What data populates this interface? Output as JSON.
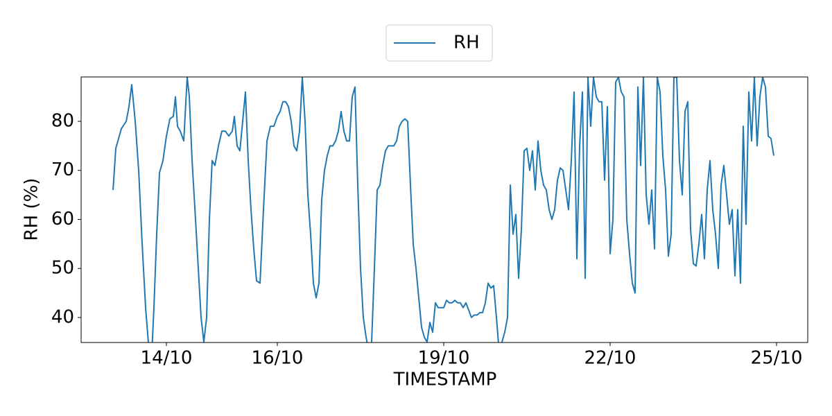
{
  "chart_data": {
    "type": "line",
    "xlabel": "TIMESTAMP",
    "ylabel": "RH (%)",
    "legend": "upper center",
    "grid": false,
    "xlim": [
      12.4625,
      25.5625
    ],
    "ylim": [
      34.9,
      89.05
    ],
    "xticks": [
      {
        "value": 14,
        "label": "14/10"
      },
      {
        "value": 16,
        "label": "16/10"
      },
      {
        "value": 19,
        "label": "19/10"
      },
      {
        "value": 22,
        "label": "22/10"
      },
      {
        "value": 25,
        "label": "25/10"
      }
    ],
    "yticks": [
      40,
      50,
      60,
      70,
      80
    ],
    "x": [
      13.038,
      13.088,
      13.188,
      13.275,
      13.325,
      13.375,
      13.438,
      13.5,
      13.563,
      13.625,
      13.688,
      13.738,
      13.775,
      13.825,
      13.875,
      13.938,
      14,
      14.063,
      14.125,
      14.163,
      14.2,
      14.25,
      14.313,
      14.375,
      14.413,
      14.463,
      14.525,
      14.575,
      14.625,
      14.675,
      14.725,
      14.775,
      14.825,
      14.875,
      14.938,
      15,
      15.063,
      15.125,
      15.188,
      15.225,
      15.275,
      15.325,
      15.375,
      15.425,
      15.475,
      15.525,
      15.575,
      15.625,
      15.688,
      15.75,
      15.813,
      15.875,
      15.938,
      16,
      16.05,
      16.1,
      16.15,
      16.2,
      16.25,
      16.3,
      16.35,
      16.4,
      16.45,
      16.5,
      16.55,
      16.6,
      16.65,
      16.7,
      16.75,
      16.8,
      16.85,
      16.9,
      16.95,
      17,
      17.05,
      17.1,
      17.15,
      17.2,
      17.25,
      17.3,
      17.35,
      17.4,
      17.45,
      17.5,
      17.55,
      17.6,
      17.65,
      17.7,
      17.75,
      17.8,
      17.85,
      17.9,
      17.95,
      18,
      18.05,
      18.1,
      18.15,
      18.2,
      18.25,
      18.3,
      18.35,
      18.4,
      18.45,
      18.5,
      18.55,
      18.6,
      18.65,
      18.7,
      18.75,
      18.8,
      18.85,
      18.9,
      18.95,
      19,
      19.05,
      19.1,
      19.15,
      19.2,
      19.25,
      19.3,
      19.35,
      19.4,
      19.45,
      19.5,
      19.55,
      19.6,
      19.65,
      19.7,
      19.75,
      19.8,
      19.85,
      19.9,
      19.95,
      20,
      20.05,
      20.1,
      20.15,
      20.2,
      20.25,
      20.3,
      20.35,
      20.4,
      20.45,
      20.5,
      20.55,
      20.6,
      20.65,
      20.7,
      20.75,
      20.8,
      20.85,
      20.9,
      20.95,
      21,
      21.05,
      21.1,
      21.15,
      21.2,
      21.25,
      21.3,
      21.35,
      21.4,
      21.45,
      21.5,
      21.55,
      21.6,
      21.65,
      21.7,
      21.75,
      21.8,
      21.85,
      21.9,
      21.95,
      22,
      22.05,
      22.1,
      22.15,
      22.2,
      22.25,
      22.3,
      22.35,
      22.4,
      22.45,
      22.5,
      22.55,
      22.6,
      22.65,
      22.7,
      22.75,
      22.8,
      22.85,
      22.9,
      22.95,
      23,
      23.05,
      23.1,
      23.15,
      23.2,
      23.25,
      23.3,
      23.35,
      23.4,
      23.45,
      23.5,
      23.55,
      23.6,
      23.65,
      23.7,
      23.75,
      23.8,
      23.85,
      23.9,
      23.95,
      24,
      24.05,
      24.1,
      24.15,
      24.2,
      24.25,
      24.3,
      24.35,
      24.4,
      24.45,
      24.5,
      24.55,
      24.6,
      24.65,
      24.7,
      24.75,
      24.8,
      24.85,
      24.9,
      24.95
    ],
    "series": [
      {
        "name": "RH",
        "color": "#1f77b4",
        "values": [
          66,
          74.5,
          78.5,
          80,
          83,
          87.5,
          80,
          70,
          55,
          42,
          33,
          33,
          42,
          57,
          69.5,
          72,
          77,
          80.5,
          81,
          85,
          79,
          78,
          76,
          89,
          85,
          72,
          60,
          50,
          40,
          35,
          40,
          60,
          72,
          71,
          75,
          78,
          78,
          77,
          78,
          81,
          75,
          74,
          80,
          86,
          72,
          62,
          54,
          47.5,
          47,
          62,
          76,
          79,
          79,
          81,
          82,
          84,
          84,
          83,
          80,
          75,
          74,
          78,
          89,
          80,
          65,
          57,
          47,
          44,
          47,
          64,
          70,
          73,
          75,
          75,
          76,
          78,
          82,
          78,
          76,
          76,
          85,
          87,
          67,
          50,
          40,
          36,
          33,
          35,
          50,
          66,
          67,
          71,
          74,
          75,
          75,
          75,
          76,
          79,
          80,
          80.5,
          80,
          67,
          55,
          50,
          44,
          38,
          36,
          35,
          39,
          37,
          43,
          42,
          42,
          42,
          43.5,
          43,
          43,
          43.5,
          43,
          43,
          42,
          43,
          41.5,
          40,
          40.5,
          40.5,
          41,
          41,
          43,
          47,
          46,
          46.5,
          40,
          33,
          35,
          37,
          40,
          67,
          57,
          61,
          48,
          58,
          74,
          74.5,
          70,
          74,
          66,
          76,
          70,
          67,
          66,
          62,
          60,
          62,
          68,
          70.5,
          70,
          66,
          62,
          72,
          86,
          52,
          75,
          86,
          48,
          89,
          79,
          89,
          85,
          84,
          84,
          68,
          83,
          53,
          60,
          88,
          89,
          86,
          85,
          60,
          53,
          47,
          45,
          87,
          71,
          89,
          65,
          59,
          66,
          54,
          89,
          86,
          73,
          66,
          52.5,
          57,
          89,
          89,
          72,
          65,
          82,
          84,
          58,
          51,
          50.5,
          55,
          61,
          52,
          66,
          72,
          62,
          57,
          50,
          67,
          71,
          65,
          59,
          62,
          48.5,
          62,
          47,
          79,
          59,
          86,
          76,
          89,
          75,
          85,
          89,
          87,
          77,
          76.5,
          73
        ]
      }
    ]
  }
}
